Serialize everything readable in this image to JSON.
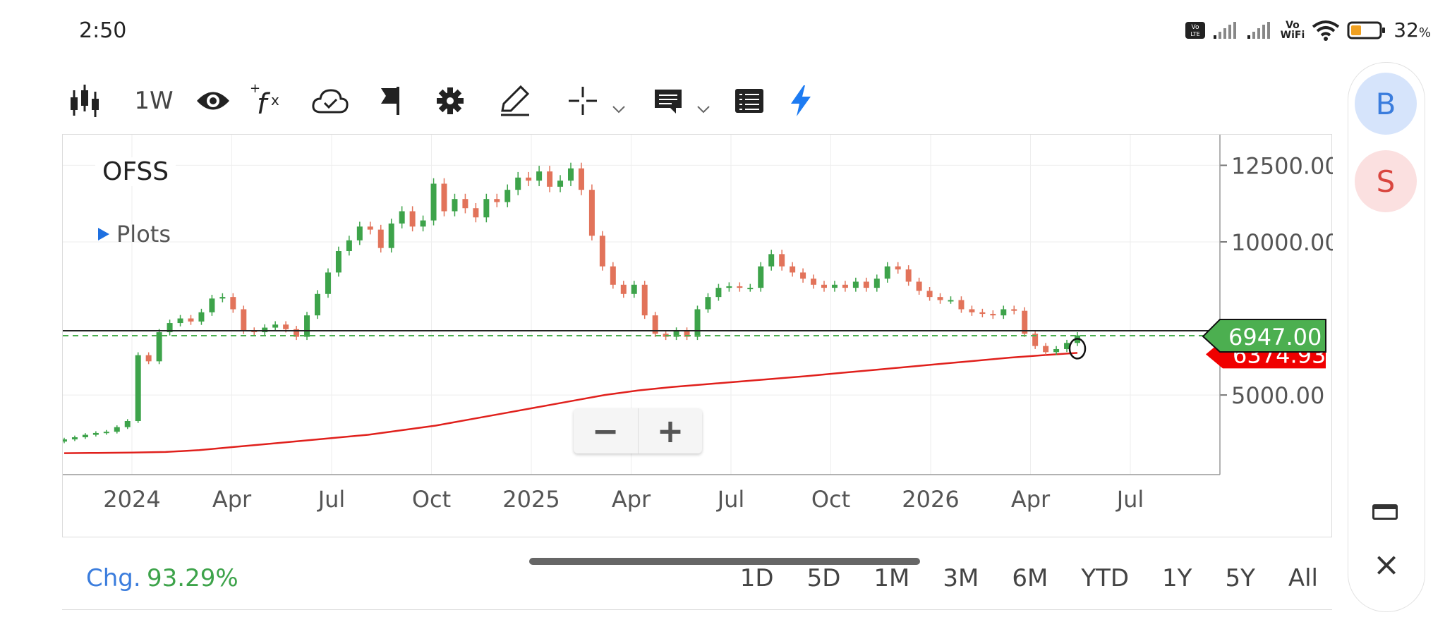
{
  "status_bar": {
    "time": "2:50",
    "battery": "32",
    "battery_unit": "%",
    "wifi_label_top": "Vo",
    "wifi_label_bottom": "WiFi",
    "volte": "Vo LTE"
  },
  "toolbar": {
    "chart_type_icon": "candlestick-icon",
    "interval": "1W",
    "icons": [
      "eye-icon",
      "function-icon",
      "cloud-icon",
      "flag-icon",
      "gear-icon",
      "pencil-icon",
      "crosshair-icon",
      "comment-icon",
      "list-icon",
      "lightning-icon"
    ]
  },
  "chart": {
    "symbol": "OFSS",
    "plots_label": "Plots",
    "price_label": "6947.00",
    "ma_label": "6374.93",
    "colors": {
      "up": "#3da34a",
      "down": "#e2735a",
      "ma": "#e0201c",
      "price_tag": "#4caf50",
      "ma_tag": "#f00000"
    }
  },
  "chart_data": {
    "type": "line",
    "title": "OFSS",
    "yticks": [
      12500,
      10000,
      5000
    ],
    "ytick_labels": [
      "12500.00",
      "10000.00",
      "5000.00"
    ],
    "xtick_labels": [
      "2024",
      "Apr",
      "Jul",
      "Oct",
      "2025",
      "Apr",
      "Jul",
      "Oct",
      "2026",
      "Apr",
      "Jul"
    ],
    "ylim": [
      2400,
      13500
    ],
    "series": [
      {
        "values": [
          3550,
          3620,
          3700,
          3760,
          3800,
          3950,
          4150,
          6300,
          6100,
          7050,
          7350,
          7500,
          7400,
          7700,
          8150,
          8200,
          7800,
          7100,
          7050,
          7200,
          7300,
          7150,
          6900,
          7600,
          8300,
          9000,
          9700,
          10050,
          10500,
          10400,
          9800,
          10600,
          11000,
          10500,
          10700,
          11900,
          11000,
          11400,
          11100,
          10800,
          11400,
          11300,
          11700,
          12100,
          12000,
          12300,
          11800,
          12000,
          12400,
          11700,
          10200,
          9200,
          8600,
          8300,
          8600,
          7600,
          7000,
          6900,
          7100,
          6900,
          7800,
          8200,
          8500,
          8550,
          8500,
          8500,
          9200,
          9600,
          9200,
          9000,
          8800,
          8600,
          8500,
          8600,
          8500,
          8700,
          8500,
          8800,
          9200,
          9100,
          8700,
          8400,
          8200,
          8100,
          8100,
          7800,
          7700,
          7650,
          7600,
          7800,
          7750,
          7000,
          6600,
          6400,
          6500,
          6700,
          6947
        ]
      },
      {
        "values": [
          3100,
          3110,
          3120,
          3140,
          3200,
          3300,
          3400,
          3500,
          3600,
          3700,
          3850,
          4000,
          4200,
          4400,
          4600,
          4800,
          5000,
          5150,
          5260,
          5350,
          5440,
          5530,
          5620,
          5720,
          5820,
          5920,
          6020,
          6120,
          6220,
          6300,
          6374.93
        ]
      }
    ]
  },
  "bottom": {
    "chg_label": "Chg.",
    "chg_value": "93.29%",
    "ranges": [
      "1D",
      "5D",
      "1M",
      "3M",
      "6M",
      "YTD",
      "1Y",
      "5Y",
      "All"
    ]
  },
  "zoom": {
    "minus": "−",
    "plus": "+"
  },
  "side_panel": {
    "buy": "B",
    "sell": "S",
    "window_icon": "window-icon",
    "close": "×"
  }
}
